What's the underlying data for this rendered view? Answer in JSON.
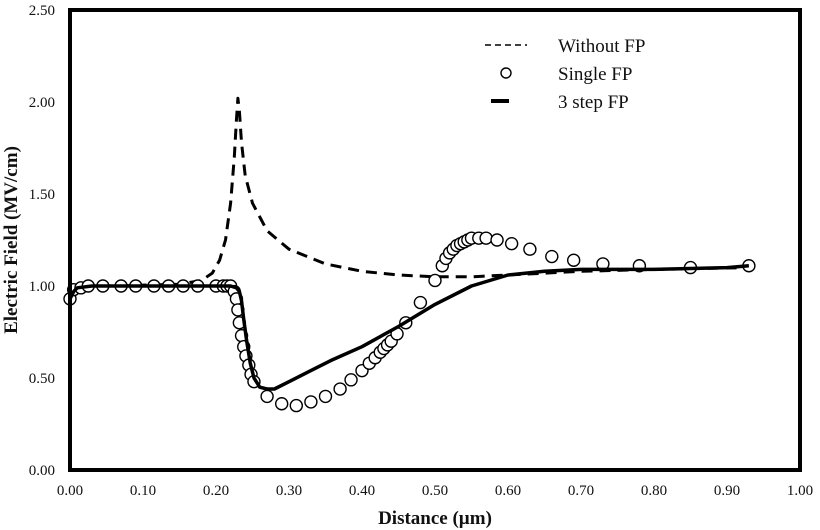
{
  "chart_data": {
    "type": "line",
    "title": "",
    "xlabel": "Distance (µm)",
    "ylabel": "Electric Field (MV/cm)",
    "xlim": [
      0,
      1.0
    ],
    "ylim": [
      0,
      2.5
    ],
    "x_ticks": [
      "0.00",
      "0.10",
      "0.20",
      "0.30",
      "0.40",
      "0.50",
      "0.60",
      "0.70",
      "0.80",
      "0.90",
      "1.00"
    ],
    "y_ticks": [
      "0.00",
      "0.50",
      "1.00",
      "1.50",
      "2.00",
      "2.50"
    ],
    "grid": false,
    "legend_position": "top-right",
    "series": [
      {
        "name": "Without FP",
        "style": "dashed",
        "points": [
          [
            0.0,
            0.93
          ],
          [
            0.005,
            0.97
          ],
          [
            0.01,
            0.99
          ],
          [
            0.02,
            1.0
          ],
          [
            0.05,
            1.0
          ],
          [
            0.1,
            1.005
          ],
          [
            0.15,
            1.01
          ],
          [
            0.18,
            1.03
          ],
          [
            0.195,
            1.07
          ],
          [
            0.205,
            1.14
          ],
          [
            0.213,
            1.25
          ],
          [
            0.22,
            1.45
          ],
          [
            0.225,
            1.7
          ],
          [
            0.228,
            1.9
          ],
          [
            0.23,
            2.02
          ],
          [
            0.232,
            1.95
          ],
          [
            0.235,
            1.78
          ],
          [
            0.24,
            1.6
          ],
          [
            0.25,
            1.45
          ],
          [
            0.27,
            1.3
          ],
          [
            0.3,
            1.2
          ],
          [
            0.35,
            1.12
          ],
          [
            0.4,
            1.08
          ],
          [
            0.45,
            1.06
          ],
          [
            0.5,
            1.05
          ],
          [
            0.55,
            1.05
          ],
          [
            0.6,
            1.06
          ],
          [
            0.7,
            1.08
          ],
          [
            0.8,
            1.09
          ],
          [
            0.93,
            1.1
          ]
        ]
      },
      {
        "name": "Single FP",
        "style": "circle-markers",
        "points": [
          [
            0.0,
            0.93
          ],
          [
            0.005,
            0.98
          ],
          [
            0.015,
            0.99
          ],
          [
            0.025,
            1.0
          ],
          [
            0.045,
            1.0
          ],
          [
            0.07,
            1.0
          ],
          [
            0.09,
            1.0
          ],
          [
            0.115,
            1.0
          ],
          [
            0.135,
            1.0
          ],
          [
            0.155,
            1.0
          ],
          [
            0.175,
            1.0
          ],
          [
            0.2,
            1.0
          ],
          [
            0.21,
            1.0
          ],
          [
            0.215,
            1.0
          ],
          [
            0.22,
            1.0
          ],
          [
            0.225,
            0.97
          ],
          [
            0.228,
            0.93
          ],
          [
            0.23,
            0.87
          ],
          [
            0.232,
            0.8
          ],
          [
            0.235,
            0.73
          ],
          [
            0.238,
            0.67
          ],
          [
            0.241,
            0.62
          ],
          [
            0.245,
            0.57
          ],
          [
            0.248,
            0.52
          ],
          [
            0.252,
            0.48
          ],
          [
            0.27,
            0.4
          ],
          [
            0.29,
            0.36
          ],
          [
            0.31,
            0.35
          ],
          [
            0.33,
            0.37
          ],
          [
            0.35,
            0.4
          ],
          [
            0.37,
            0.44
          ],
          [
            0.385,
            0.49
          ],
          [
            0.4,
            0.54
          ],
          [
            0.41,
            0.58
          ],
          [
            0.418,
            0.61
          ],
          [
            0.425,
            0.64
          ],
          [
            0.43,
            0.66
          ],
          [
            0.435,
            0.68
          ],
          [
            0.44,
            0.7
          ],
          [
            0.448,
            0.74
          ],
          [
            0.46,
            0.8
          ],
          [
            0.48,
            0.91
          ],
          [
            0.5,
            1.03
          ],
          [
            0.51,
            1.11
          ],
          [
            0.515,
            1.15
          ],
          [
            0.52,
            1.18
          ],
          [
            0.525,
            1.2
          ],
          [
            0.53,
            1.22
          ],
          [
            0.535,
            1.23
          ],
          [
            0.54,
            1.24
          ],
          [
            0.545,
            1.25
          ],
          [
            0.55,
            1.26
          ],
          [
            0.56,
            1.26
          ],
          [
            0.57,
            1.26
          ],
          [
            0.585,
            1.25
          ],
          [
            0.605,
            1.23
          ],
          [
            0.63,
            1.2
          ],
          [
            0.66,
            1.16
          ],
          [
            0.69,
            1.14
          ],
          [
            0.73,
            1.12
          ],
          [
            0.78,
            1.11
          ],
          [
            0.85,
            1.1
          ],
          [
            0.93,
            1.11
          ]
        ]
      },
      {
        "name": "3 step FP",
        "style": "solid",
        "points": [
          [
            0.0,
            0.93
          ],
          [
            0.005,
            0.97
          ],
          [
            0.01,
            0.99
          ],
          [
            0.03,
            1.0
          ],
          [
            0.1,
            1.0
          ],
          [
            0.2,
            1.0
          ],
          [
            0.22,
            1.0
          ],
          [
            0.228,
            0.99
          ],
          [
            0.232,
            0.97
          ],
          [
            0.235,
            0.92
          ],
          [
            0.238,
            0.82
          ],
          [
            0.242,
            0.7
          ],
          [
            0.247,
            0.58
          ],
          [
            0.252,
            0.5
          ],
          [
            0.26,
            0.45
          ],
          [
            0.27,
            0.44
          ],
          [
            0.28,
            0.44
          ],
          [
            0.3,
            0.48
          ],
          [
            0.33,
            0.54
          ],
          [
            0.36,
            0.6
          ],
          [
            0.4,
            0.67
          ],
          [
            0.45,
            0.78
          ],
          [
            0.5,
            0.9
          ],
          [
            0.55,
            1.0
          ],
          [
            0.6,
            1.06
          ],
          [
            0.65,
            1.08
          ],
          [
            0.7,
            1.09
          ],
          [
            0.8,
            1.09
          ],
          [
            0.9,
            1.1
          ],
          [
            0.93,
            1.11
          ]
        ]
      }
    ]
  }
}
